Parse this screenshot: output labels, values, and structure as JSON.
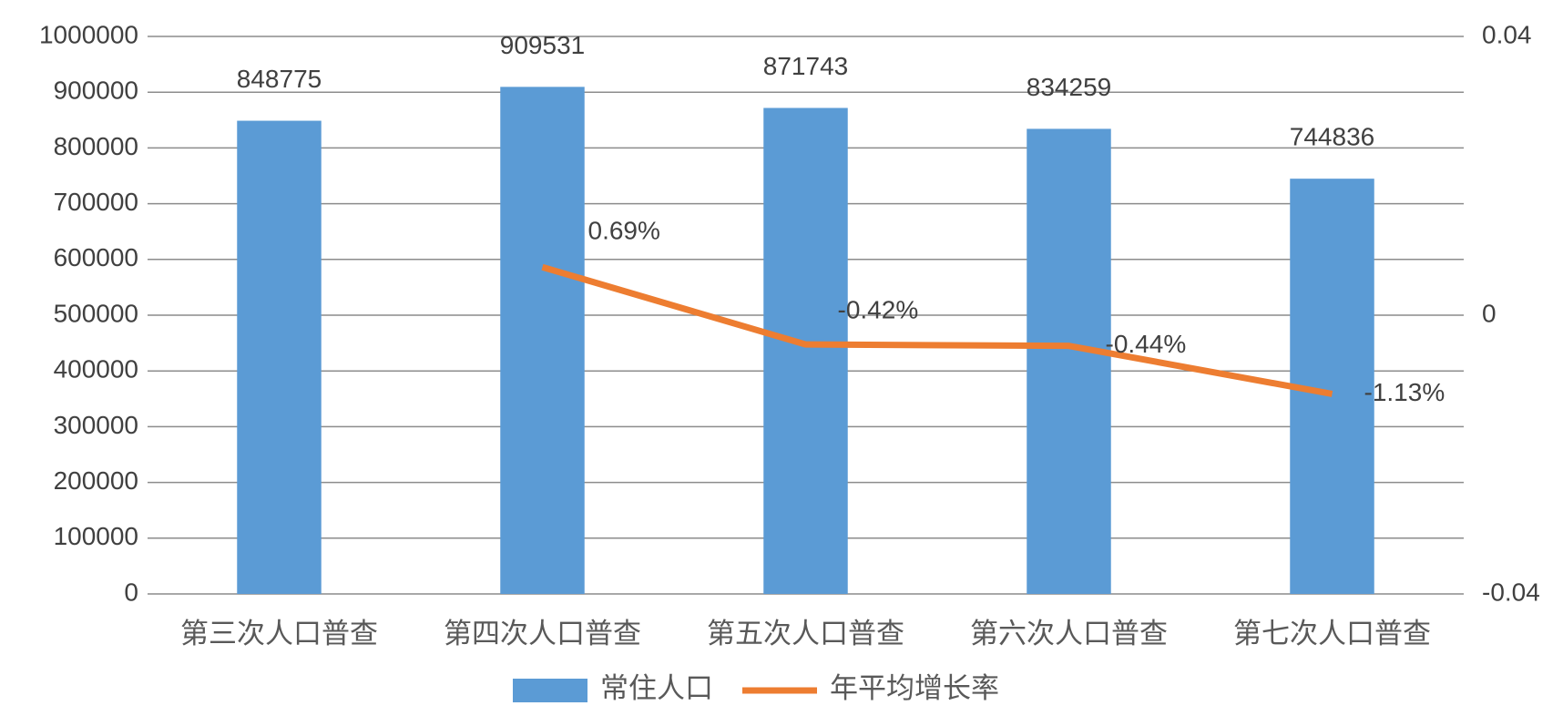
{
  "chart_data": {
    "type": "bar",
    "categories": [
      "第三次人口普查",
      "第四次人口普查",
      "第五次人口普查",
      "第六次人口普查",
      "第七次人口普查"
    ],
    "series": [
      {
        "name": "常住人口",
        "type": "bar",
        "color": "#5b9bd5",
        "values": [
          848775,
          909531,
          871743,
          834259,
          744836
        ]
      },
      {
        "name": "年平均增长率",
        "type": "line",
        "axis": "y2",
        "color": "#ed7d31",
        "values": [
          null,
          0.0069,
          -0.0042,
          -0.0044,
          -0.0113
        ],
        "value_labels": [
          null,
          "0.69%",
          "-0.42%",
          "-0.44%",
          "-1.13%"
        ]
      }
    ],
    "ylim": [
      0,
      1000000
    ],
    "yticks": [
      0,
      100000,
      200000,
      300000,
      400000,
      500000,
      600000,
      700000,
      800000,
      900000,
      1000000
    ],
    "y2lim": [
      -0.04,
      0.04
    ],
    "y2ticks": [
      -0.04,
      0,
      0.04
    ],
    "grid": true,
    "legend": "bottom"
  }
}
